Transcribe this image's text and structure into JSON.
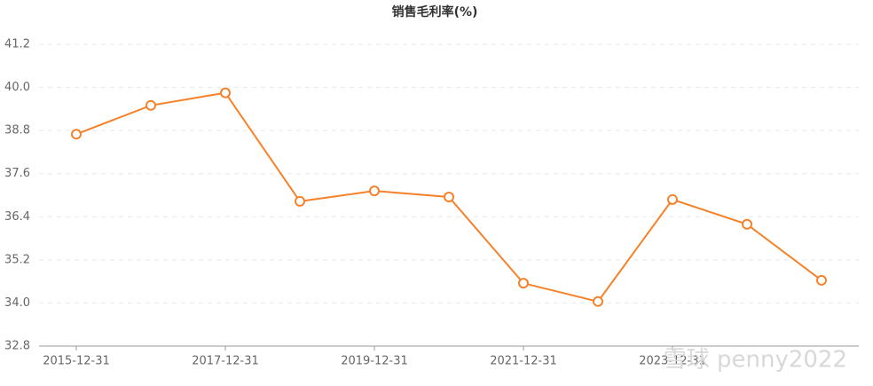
{
  "chart_data": {
    "type": "line",
    "title": "销售毛利率(%)",
    "categories": [
      "2015-12-31",
      null,
      "2017-12-31",
      null,
      "2019-12-31",
      null,
      "2021-12-31",
      null,
      "2023-12-31",
      null,
      null
    ],
    "series": [
      {
        "color": "#f5822a",
        "values": [
          38.7,
          39.5,
          39.85,
          36.83,
          37.12,
          36.95,
          34.55,
          34.04,
          36.88,
          36.19,
          34.63
        ]
      }
    ],
    "ylim": [
      32.8,
      41.2
    ],
    "yticks": [
      32.8,
      {
        "value": 34,
        "label": "34.0"
      },
      35.2,
      36.4,
      37.6,
      38.8,
      {
        "value": 40,
        "label": "40.0"
      },
      41.2
    ],
    "grid": true
  },
  "watermark": "雪球 penny2022"
}
